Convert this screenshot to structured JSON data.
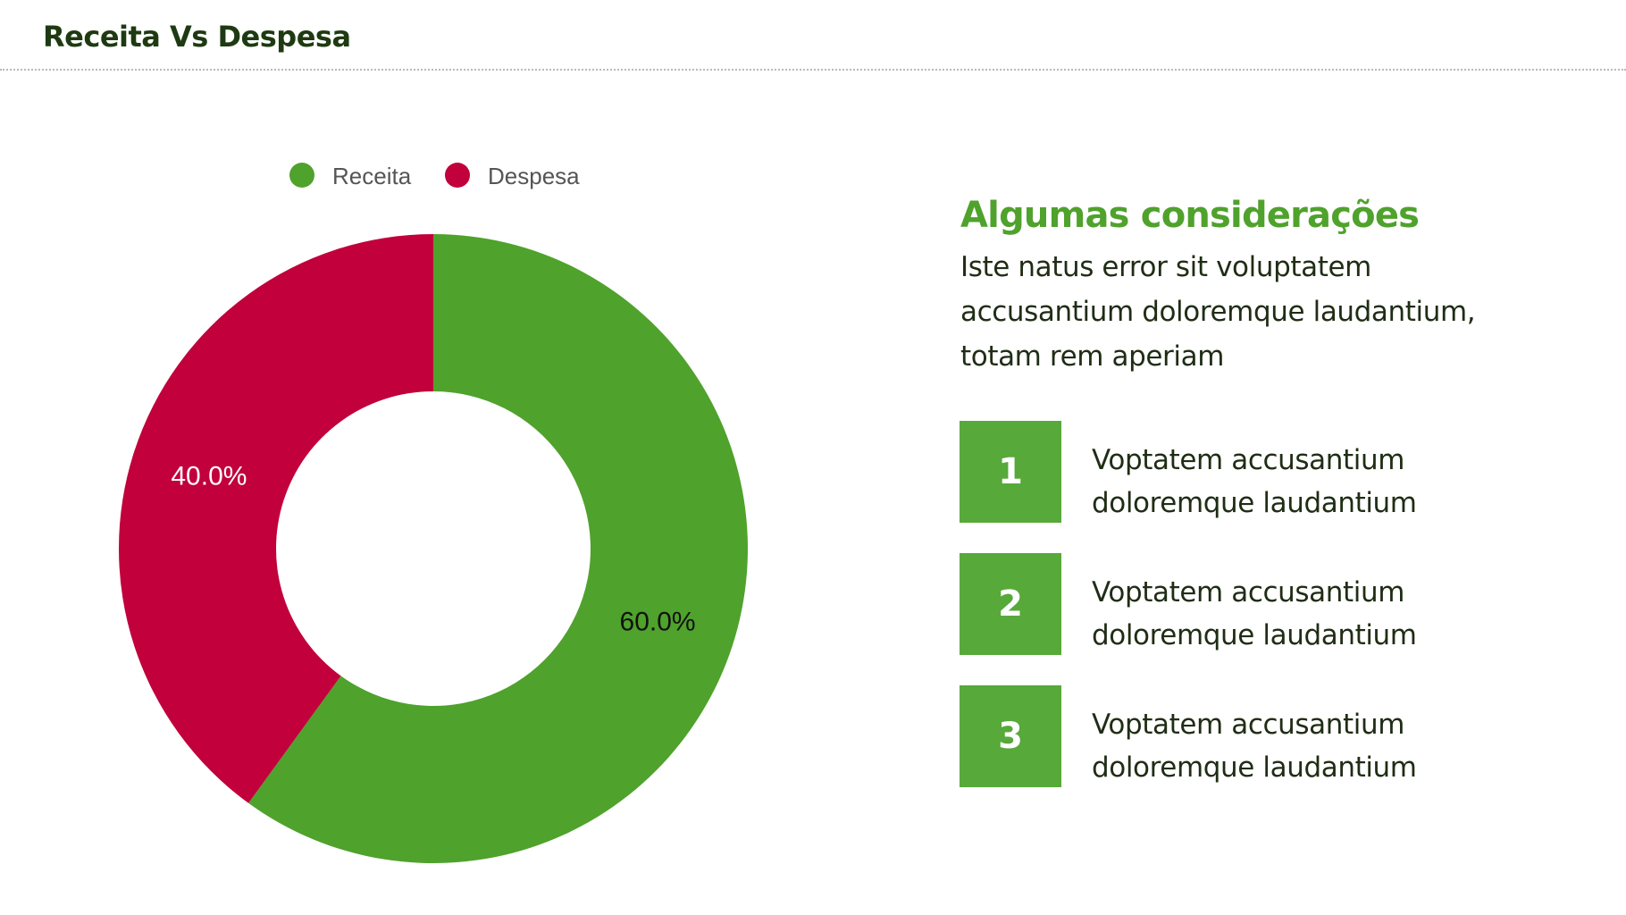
{
  "header": {
    "title": "Receita Vs Despesa"
  },
  "chart_data": {
    "type": "pie",
    "variant": "donut",
    "title": "",
    "categories": [
      "Receita",
      "Despesa"
    ],
    "values": [
      60.0,
      40.0
    ],
    "data_labels": [
      "60.0%",
      "40.0%"
    ],
    "colors": [
      "#4fa22c",
      "#c1003c"
    ],
    "legend": {
      "placement": "top",
      "entries": [
        "Receita",
        "Despesa"
      ]
    }
  },
  "side": {
    "heading": "Algumas considerações",
    "text": "Iste natus error sit voluptatem accusantium doloremque laudantium, totam rem aperiam",
    "items": [
      {
        "number": "1",
        "text": "Voptatem accusantium doloremque laudantium"
      },
      {
        "number": "2",
        "text": "Voptatem accusantium doloremque laudantium"
      },
      {
        "number": "3",
        "text": "Voptatem accusantium doloremque laudantium"
      }
    ]
  },
  "colors": {
    "accent": "#4fa22c",
    "number_box": "#57a93a",
    "despesa": "#c1003c",
    "title": "#1e3a12",
    "text": "#1f2d15"
  }
}
